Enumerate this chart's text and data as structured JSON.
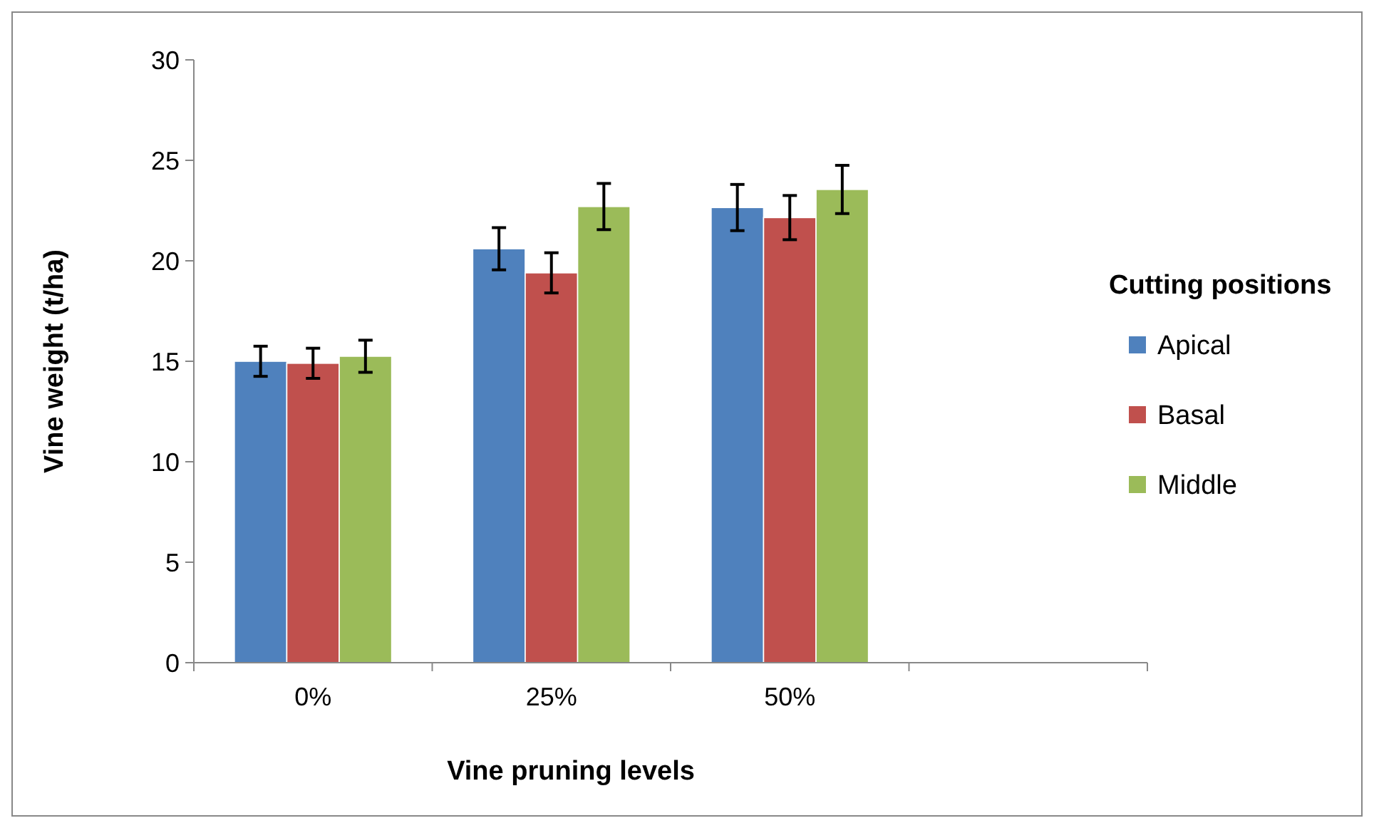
{
  "chart_data": {
    "type": "bar",
    "xlabel": "Vine pruning levels",
    "ylabel": "Vine weight (t/ha)",
    "legend_title": "Cutting positions",
    "legend": "right",
    "categories": [
      "0%",
      "25%",
      "50%",
      null
    ],
    "series": [
      {
        "name": "Apical",
        "color": "#4f81bd",
        "values": [
          15.0,
          20.6,
          22.65,
          null
        ],
        "errors": [
          0.75,
          1.05,
          1.15,
          null
        ]
      },
      {
        "name": "Basal",
        "color": "#c0504d",
        "values": [
          14.9,
          19.4,
          22.15,
          null
        ],
        "errors": [
          0.75,
          1.0,
          1.1,
          null
        ]
      },
      {
        "name": "Middle",
        "color": "#9bbb59",
        "values": [
          15.25,
          22.7,
          23.55,
          null
        ],
        "errors": [
          0.8,
          1.15,
          1.2,
          null
        ]
      }
    ],
    "ylim": [
      0,
      30
    ],
    "yticks": [
      0,
      5,
      10,
      15,
      20,
      25,
      30
    ]
  }
}
